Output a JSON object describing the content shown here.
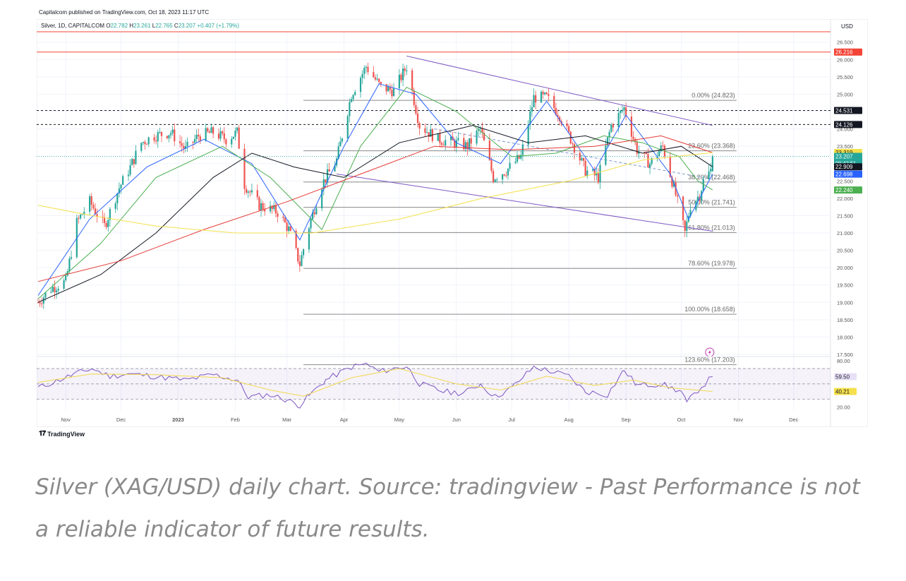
{
  "header": {
    "published": "Capitalcom published on TradingView.com, Oct 18, 2023 11:17 UTC"
  },
  "legend": {
    "symbol": "Silver, 1D, CAPITALCOM",
    "ohlc": [
      {
        "k": "O",
        "v": "22.782"
      },
      {
        "k": "H",
        "v": "23.261"
      },
      {
        "k": "L",
        "v": "22.765"
      },
      {
        "k": "C",
        "v": "23.207"
      }
    ],
    "change": "+0.407 (+1.79%)"
  },
  "colors": {
    "up": "#26a69a",
    "down": "#ef5350",
    "ma_blue": "#2962ff",
    "ma_green": "#4caf50",
    "ma_black": "#131722",
    "ma_red": "#e53935",
    "ma_yellow": "#f2e14c",
    "channel": "#7e57c2",
    "fib": "#9e9e9e",
    "resistance": "#f44336",
    "rsi": "#7e57c2"
  },
  "footer": {
    "brand": "TradingView"
  },
  "caption": "Silver (XAG/USD) daily chart. Source: tradingview - Past Performance is not a reliable indicator of future results.",
  "chart_data": [
    {
      "type": "candlestick",
      "title": "Silver, 1D, CAPITALCOM",
      "currency": "USD",
      "ylim": [
        17.5,
        26.8
      ],
      "y_ticks": [
        "17.500",
        "18.000",
        "18.500",
        "19.000",
        "19.500",
        "20.000",
        "20.500",
        "21.000",
        "21.500",
        "22.000",
        "22.500",
        "23.000",
        "23.500",
        "24.000",
        "24.500",
        "25.000",
        "25.500",
        "26.000",
        "26.500"
      ],
      "x_ticks": [
        "Nov",
        "Dec",
        "2023",
        "Feb",
        "Mar",
        "Apr",
        "May",
        "Jun",
        "Jul",
        "Aug",
        "Sep",
        "Oct",
        "Nov",
        "Dec"
      ],
      "x_tick_dates": [
        "2022-11-01",
        "2022-12-01",
        "2023-01-01",
        "2023-02-01",
        "2023-03-01",
        "2023-04-01",
        "2023-05-01",
        "2023-06-01",
        "2023-07-01",
        "2023-08-01",
        "2023-09-01",
        "2023-10-01",
        "2023-11-01",
        "2023-12-01"
      ],
      "anchors": [
        {
          "date": "2022-10-17",
          "close": 19.0
        },
        {
          "date": "2022-10-24",
          "close": 19.4
        },
        {
          "date": "2022-11-01",
          "close": 19.6
        },
        {
          "date": "2022-11-07",
          "close": 21.3
        },
        {
          "date": "2022-11-14",
          "close": 21.9
        },
        {
          "date": "2022-11-22",
          "close": 21.2
        },
        {
          "date": "2022-11-30",
          "close": 22.3
        },
        {
          "date": "2022-12-06",
          "close": 22.9
        },
        {
          "date": "2022-12-12",
          "close": 23.6
        },
        {
          "date": "2022-12-19",
          "close": 23.8
        },
        {
          "date": "2022-12-28",
          "close": 23.9
        },
        {
          "date": "2023-01-05",
          "close": 23.4
        },
        {
          "date": "2023-01-12",
          "close": 23.8
        },
        {
          "date": "2023-01-20",
          "close": 23.9
        },
        {
          "date": "2023-01-27",
          "close": 23.7
        },
        {
          "date": "2023-02-02",
          "close": 23.9
        },
        {
          "date": "2023-02-06",
          "close": 22.4
        },
        {
          "date": "2023-02-14",
          "close": 21.8
        },
        {
          "date": "2023-02-24",
          "close": 21.6
        },
        {
          "date": "2023-03-02",
          "close": 21.1
        },
        {
          "date": "2023-03-08",
          "close": 20.1
        },
        {
          "date": "2023-03-13",
          "close": 21.2
        },
        {
          "date": "2023-03-20",
          "close": 22.4
        },
        {
          "date": "2023-03-28",
          "close": 23.1
        },
        {
          "date": "2023-04-05",
          "close": 25.0
        },
        {
          "date": "2023-04-13",
          "close": 25.8
        },
        {
          "date": "2023-04-21",
          "close": 25.2
        },
        {
          "date": "2023-04-28",
          "close": 25.1
        },
        {
          "date": "2023-05-05",
          "close": 25.8
        },
        {
          "date": "2023-05-12",
          "close": 24.1
        },
        {
          "date": "2023-05-22",
          "close": 23.7
        },
        {
          "date": "2023-05-31",
          "close": 23.6
        },
        {
          "date": "2023-06-07",
          "close": 23.5
        },
        {
          "date": "2023-06-14",
          "close": 24.0
        },
        {
          "date": "2023-06-21",
          "close": 22.6
        },
        {
          "date": "2023-06-28",
          "close": 22.8
        },
        {
          "date": "2023-07-06",
          "close": 23.2
        },
        {
          "date": "2023-07-13",
          "close": 24.9
        },
        {
          "date": "2023-07-20",
          "close": 24.9
        },
        {
          "date": "2023-07-27",
          "close": 24.4
        },
        {
          "date": "2023-08-03",
          "close": 23.6
        },
        {
          "date": "2023-08-10",
          "close": 22.8
        },
        {
          "date": "2023-08-17",
          "close": 22.6
        },
        {
          "date": "2023-08-24",
          "close": 24.1
        },
        {
          "date": "2023-08-31",
          "close": 24.6
        },
        {
          "date": "2023-09-07",
          "close": 23.4
        },
        {
          "date": "2023-09-14",
          "close": 23.0
        },
        {
          "date": "2023-09-21",
          "close": 23.5
        },
        {
          "date": "2023-09-28",
          "close": 22.1
        },
        {
          "date": "2023-10-03",
          "close": 21.0
        },
        {
          "date": "2023-10-06",
          "close": 21.8
        },
        {
          "date": "2023-10-11",
          "close": 22.1
        },
        {
          "date": "2023-10-13",
          "close": 22.5
        },
        {
          "date": "2023-10-17",
          "close": 22.8
        },
        {
          "date": "2023-10-18",
          "close": 23.207
        }
      ],
      "moving_averages": [
        {
          "color": "ma_blue",
          "points": [
            [
              "2022-10-17",
              19.2
            ],
            [
              "2022-11-14",
              21.4
            ],
            [
              "2022-12-15",
              22.9
            ],
            [
              "2023-01-15",
              23.7
            ],
            [
              "2023-02-10",
              23.0
            ],
            [
              "2023-03-08",
              20.8
            ],
            [
              "2023-04-01",
              23.5
            ],
            [
              "2023-04-20",
              25.3
            ],
            [
              "2023-05-10",
              25.0
            ],
            [
              "2023-06-01",
              23.6
            ],
            [
              "2023-06-25",
              23.0
            ],
            [
              "2023-07-20",
              24.8
            ],
            [
              "2023-08-15",
              22.8
            ],
            [
              "2023-09-01",
              24.4
            ],
            [
              "2023-09-25",
              22.7
            ],
            [
              "2023-10-05",
              21.4
            ],
            [
              "2023-10-18",
              22.7
            ]
          ]
        },
        {
          "color": "ma_green",
          "points": [
            [
              "2022-10-17",
              19.1
            ],
            [
              "2022-11-20",
              20.7
            ],
            [
              "2022-12-20",
              22.6
            ],
            [
              "2023-01-25",
              23.5
            ],
            [
              "2023-02-20",
              22.6
            ],
            [
              "2023-03-20",
              21.1
            ],
            [
              "2023-04-10",
              23.5
            ],
            [
              "2023-05-05",
              25.2
            ],
            [
              "2023-06-01",
              24.5
            ],
            [
              "2023-07-01",
              23.2
            ],
            [
              "2023-07-25",
              23.3
            ],
            [
              "2023-08-20",
              23.8
            ],
            [
              "2023-09-10",
              23.6
            ],
            [
              "2023-09-30",
              23.2
            ],
            [
              "2023-10-10",
              22.5
            ],
            [
              "2023-10-18",
              22.24
            ]
          ]
        },
        {
          "color": "ma_black",
          "points": [
            [
              "2022-10-17",
              19.0
            ],
            [
              "2022-11-20",
              19.8
            ],
            [
              "2022-12-20",
              21.0
            ],
            [
              "2023-01-20",
              22.6
            ],
            [
              "2023-02-10",
              23.3
            ],
            [
              "2023-03-05",
              22.9
            ],
            [
              "2023-04-01",
              22.6
            ],
            [
              "2023-05-01",
              23.6
            ],
            [
              "2023-06-10",
              24.1
            ],
            [
              "2023-07-10",
              23.6
            ],
            [
              "2023-08-10",
              23.8
            ],
            [
              "2023-09-10",
              23.3
            ],
            [
              "2023-10-01",
              23.5
            ],
            [
              "2023-10-18",
              22.909
            ]
          ]
        },
        {
          "color": "ma_red",
          "points": [
            [
              "2022-10-17",
              19.6
            ],
            [
              "2022-12-01",
              20.2
            ],
            [
              "2023-01-15",
              21.1
            ],
            [
              "2023-03-01",
              21.9
            ],
            [
              "2023-04-15",
              22.8
            ],
            [
              "2023-05-20",
              23.5
            ],
            [
              "2023-07-01",
              23.4
            ],
            [
              "2023-08-15",
              23.5
            ],
            [
              "2023-09-20",
              23.8
            ],
            [
              "2023-10-18",
              23.319
            ]
          ]
        },
        {
          "color": "ma_yellow",
          "points": [
            [
              "2022-10-17",
              21.8
            ],
            [
              "2022-11-15",
              21.5
            ],
            [
              "2022-12-20",
              21.2
            ],
            [
              "2023-02-01",
              21.0
            ],
            [
              "2023-03-15",
              21.0
            ],
            [
              "2023-05-01",
              21.4
            ],
            [
              "2023-06-15",
              22.0
            ],
            [
              "2023-08-01",
              22.5
            ],
            [
              "2023-09-10",
              23.1
            ],
            [
              "2023-10-18",
              23.319
            ]
          ]
        }
      ],
      "fibonacci": [
        {
          "label": "0.00% (24.823)",
          "value": 24.823
        },
        {
          "label": "23.60% (23.368)",
          "value": 23.368
        },
        {
          "label": "38.20% (22.468)",
          "value": 22.468
        },
        {
          "label": "50.00% (21.741)",
          "value": 21.741
        },
        {
          "label": "61.80% (21.013)",
          "value": 21.013
        },
        {
          "label": "78.60% (19.978)",
          "value": 19.978
        },
        {
          "label": "100.00% (18.658)",
          "value": 18.658
        },
        {
          "label": "123.60% (17.203)",
          "value": 17.203
        }
      ],
      "fib_start": "2023-03-10",
      "horizontal_lines": [
        {
          "value": 26.216,
          "style": "solid",
          "color": "resistance"
        },
        {
          "value": 26.8,
          "style": "solid",
          "color": "resistance"
        },
        {
          "value": 24.531,
          "style": "dashed",
          "color": "ma_black"
        },
        {
          "value": 24.126,
          "style": "dashed",
          "color": "ma_black"
        }
      ],
      "channel": {
        "upper": [
          [
            "2023-05-05",
            26.1
          ],
          [
            "2023-10-18",
            24.1
          ]
        ],
        "lower": [
          [
            "2023-03-28",
            22.7
          ],
          [
            "2023-10-18",
            21.05
          ]
        ],
        "mid": [
          [
            "2023-05-20",
            24.0
          ],
          [
            "2023-10-18",
            22.55
          ]
        ]
      },
      "price_labels": [
        {
          "text": "26.216",
          "value": 26.216,
          "bg": "#f44336",
          "fg": "#ffffff"
        },
        {
          "text": "24.531",
          "value": 24.531,
          "bg": "#131722",
          "fg": "#ffffff"
        },
        {
          "text": "24.126",
          "value": 24.126,
          "bg": "#131722",
          "fg": "#ffffff"
        },
        {
          "text": "23.319",
          "value": 23.319,
          "bg": "#f5e04c",
          "fg": "#131722"
        },
        {
          "text": "23.207",
          "value": 23.207,
          "bg": "#26a69a",
          "fg": "#ffffff",
          "sub": "09:42:51"
        },
        {
          "text": "22.909",
          "value": 22.909,
          "bg": "#131722",
          "fg": "#ffffff"
        },
        {
          "text": "22.698",
          "value": 22.698,
          "bg": "#2962ff",
          "fg": "#ffffff"
        },
        {
          "text": "22.240",
          "value": 22.24,
          "bg": "#4caf50",
          "fg": "#ffffff"
        }
      ]
    },
    {
      "type": "line",
      "title": "RSI",
      "ylim": [
        14,
        82
      ],
      "y_ticks": [
        "20.00",
        "40.00",
        "60.00",
        "80.00"
      ],
      "bands": [
        30,
        50,
        70
      ],
      "rsi": [
        [
          "2022-10-17",
          45
        ],
        [
          "2022-10-25",
          52
        ],
        [
          "2022-11-05",
          62
        ],
        [
          "2022-11-15",
          70
        ],
        [
          "2022-11-25",
          60
        ],
        [
          "2022-12-05",
          63
        ],
        [
          "2022-12-15",
          61
        ],
        [
          "2023-01-05",
          55
        ],
        [
          "2023-01-20",
          62
        ],
        [
          "2023-02-02",
          55
        ],
        [
          "2023-02-08",
          33
        ],
        [
          "2023-02-20",
          36
        ],
        [
          "2023-03-01",
          29
        ],
        [
          "2023-03-08",
          22
        ],
        [
          "2023-03-13",
          35
        ],
        [
          "2023-03-22",
          55
        ],
        [
          "2023-04-05",
          72
        ],
        [
          "2023-04-13",
          76
        ],
        [
          "2023-04-20",
          66
        ],
        [
          "2023-05-05",
          73
        ],
        [
          "2023-05-12",
          50
        ],
        [
          "2023-05-25",
          40
        ],
        [
          "2023-06-05",
          38
        ],
        [
          "2023-06-14",
          50
        ],
        [
          "2023-06-22",
          33
        ],
        [
          "2023-07-01",
          45
        ],
        [
          "2023-07-13",
          72
        ],
        [
          "2023-07-20",
          68
        ],
        [
          "2023-08-01",
          60
        ],
        [
          "2023-08-10",
          40
        ],
        [
          "2023-08-22",
          36
        ],
        [
          "2023-08-31",
          68
        ],
        [
          "2023-09-07",
          48
        ],
        [
          "2023-09-20",
          50
        ],
        [
          "2023-10-01",
          40
        ],
        [
          "2023-10-04",
          25
        ],
        [
          "2023-10-10",
          42
        ],
        [
          "2023-10-18",
          59.5
        ]
      ],
      "signal": [
        [
          "2022-10-17",
          52
        ],
        [
          "2022-11-15",
          63
        ],
        [
          "2022-12-20",
          62
        ],
        [
          "2023-01-25",
          58
        ],
        [
          "2023-02-20",
          42
        ],
        [
          "2023-03-10",
          34
        ],
        [
          "2023-04-05",
          58
        ],
        [
          "2023-05-01",
          70
        ],
        [
          "2023-06-01",
          50
        ],
        [
          "2023-06-25",
          42
        ],
        [
          "2023-07-20",
          60
        ],
        [
          "2023-08-15",
          48
        ],
        [
          "2023-09-05",
          55
        ],
        [
          "2023-09-25",
          45
        ],
        [
          "2023-10-18",
          40.21
        ]
      ],
      "labels": [
        {
          "text": "59.50",
          "value": 59.5,
          "bg": "#e8e0f7",
          "fg": "#131722"
        },
        {
          "text": "40.21",
          "value": 40.21,
          "bg": "#f5e04c",
          "fg": "#131722"
        }
      ]
    }
  ]
}
